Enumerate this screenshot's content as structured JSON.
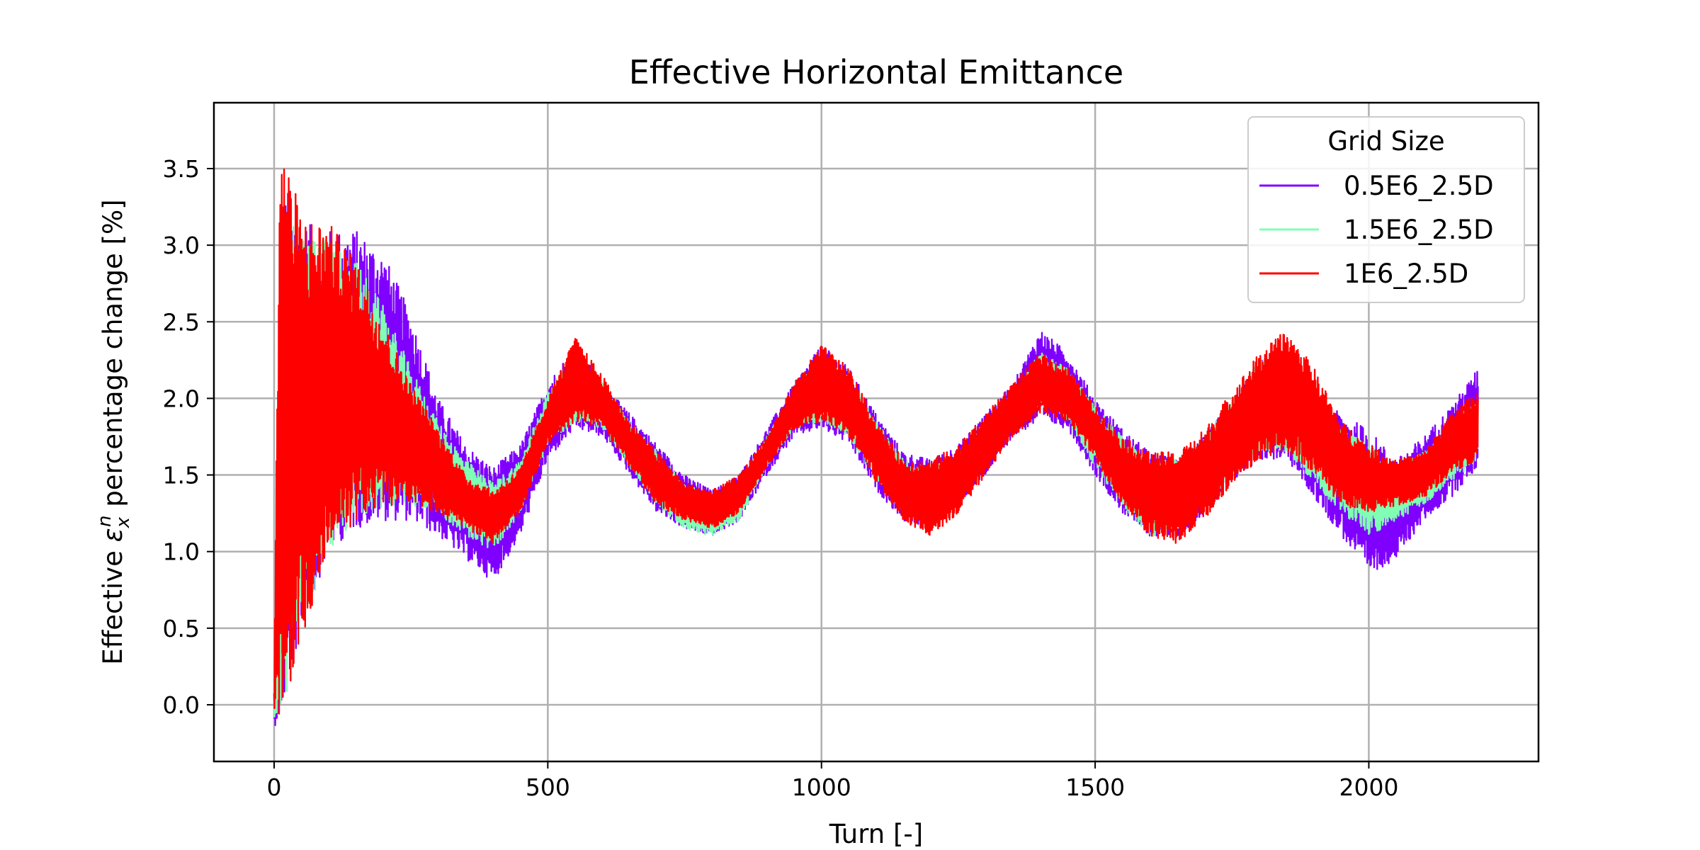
{
  "chart_data": {
    "type": "line",
    "title": "Effective Horizontal Emittance",
    "xlabel": "Turn [-]",
    "ylabel_prefix": "Effective ",
    "ylabel_symbol": "ε",
    "ylabel_sub": "x",
    "ylabel_sup": "n",
    "ylabel_suffix": " percentage change [%]",
    "xlim": [
      -110,
      2310
    ],
    "ylim": [
      -0.37,
      3.93
    ],
    "xticks": [
      0,
      500,
      1000,
      1500,
      2000
    ],
    "yticks": [
      0.0,
      0.5,
      1.0,
      1.5,
      2.0,
      2.5,
      3.0,
      3.5
    ],
    "xtick_labels": [
      "0",
      "500",
      "1000",
      "1500",
      "2000"
    ],
    "ytick_labels": [
      "0.0",
      "0.5",
      "1.0",
      "1.5",
      "2.0",
      "2.5",
      "3.0",
      "3.5"
    ],
    "grid": true,
    "legend": {
      "title": "Grid Size",
      "position": "top-right"
    },
    "series": [
      {
        "name": "0.5E6_2.5D",
        "color": "#8000ff",
        "x": [
          0,
          20,
          50,
          100,
          150,
          200,
          250,
          300,
          350,
          400,
          450,
          500,
          550,
          600,
          650,
          700,
          750,
          800,
          850,
          900,
          950,
          1000,
          1050,
          1100,
          1150,
          1200,
          1250,
          1300,
          1350,
          1400,
          1450,
          1500,
          1550,
          1600,
          1650,
          1700,
          1750,
          1800,
          1850,
          1900,
          1950,
          2000,
          2050,
          2100,
          2150,
          2200
        ],
        "upper": [
          0.1,
          3.4,
          3.15,
          3.1,
          3.1,
          2.95,
          2.55,
          2.0,
          1.7,
          1.55,
          1.7,
          2.1,
          2.35,
          2.1,
          1.9,
          1.7,
          1.5,
          1.4,
          1.5,
          1.8,
          2.1,
          2.35,
          2.2,
          1.9,
          1.65,
          1.6,
          1.7,
          1.9,
          2.1,
          2.45,
          2.3,
          2.0,
          1.8,
          1.65,
          1.6,
          1.75,
          2.0,
          2.25,
          2.3,
          2.0,
          1.9,
          1.8,
          1.6,
          1.75,
          1.95,
          2.2
        ],
        "lower": [
          -0.15,
          0.0,
          0.5,
          1.0,
          1.15,
          1.2,
          1.2,
          1.1,
          0.95,
          0.8,
          1.1,
          1.6,
          1.8,
          1.75,
          1.5,
          1.25,
          1.15,
          1.1,
          1.2,
          1.5,
          1.75,
          1.8,
          1.7,
          1.4,
          1.2,
          1.15,
          1.3,
          1.5,
          1.75,
          1.85,
          1.8,
          1.5,
          1.25,
          1.1,
          1.1,
          1.25,
          1.45,
          1.6,
          1.6,
          1.35,
          1.1,
          0.85,
          0.95,
          1.2,
          1.35,
          1.55
        ]
      },
      {
        "name": "1.5E6_2.5D",
        "color": "#80ffb4",
        "x": [
          0,
          20,
          50,
          100,
          150,
          200,
          250,
          300,
          350,
          400,
          450,
          500,
          550,
          600,
          650,
          700,
          750,
          800,
          850,
          900,
          950,
          1000,
          1050,
          1100,
          1150,
          1200,
          1250,
          1300,
          1350,
          1400,
          1450,
          1500,
          1550,
          1600,
          1650,
          1700,
          1750,
          1800,
          1850,
          1900,
          1950,
          2000,
          2050,
          2100,
          2150,
          2200
        ],
        "upper": [
          0.1,
          3.3,
          3.1,
          3.05,
          2.9,
          2.6,
          2.2,
          1.85,
          1.6,
          1.45,
          1.6,
          2.05,
          2.3,
          2.1,
          1.85,
          1.65,
          1.45,
          1.35,
          1.45,
          1.75,
          2.05,
          2.3,
          2.15,
          1.85,
          1.6,
          1.55,
          1.65,
          1.85,
          2.05,
          2.3,
          2.2,
          1.95,
          1.75,
          1.6,
          1.6,
          1.75,
          2.0,
          2.25,
          2.3,
          2.0,
          1.8,
          1.7,
          1.55,
          1.65,
          1.85,
          2.0
        ],
        "lower": [
          -0.15,
          0.0,
          0.5,
          1.0,
          1.2,
          1.3,
          1.3,
          1.25,
          1.1,
          1.0,
          1.25,
          1.7,
          1.85,
          1.8,
          1.55,
          1.3,
          1.15,
          1.1,
          1.2,
          1.55,
          1.8,
          1.85,
          1.75,
          1.45,
          1.25,
          1.2,
          1.35,
          1.55,
          1.8,
          1.95,
          1.85,
          1.55,
          1.3,
          1.1,
          1.1,
          1.3,
          1.5,
          1.65,
          1.65,
          1.45,
          1.25,
          1.1,
          1.2,
          1.3,
          1.45,
          1.6
        ]
      },
      {
        "name": "1E6_2.5D",
        "color": "#ff0000",
        "x": [
          0,
          10,
          50,
          100,
          150,
          200,
          250,
          300,
          350,
          400,
          450,
          500,
          550,
          600,
          650,
          700,
          750,
          800,
          850,
          900,
          950,
          1000,
          1050,
          1100,
          1150,
          1200,
          1250,
          1300,
          1350,
          1400,
          1450,
          1500,
          1550,
          1600,
          1650,
          1700,
          1750,
          1800,
          1850,
          1900,
          1950,
          2000,
          2050,
          2100,
          2150,
          2200
        ],
        "upper": [
          0.1,
          3.75,
          3.2,
          3.15,
          2.9,
          2.5,
          2.1,
          1.8,
          1.5,
          1.4,
          1.55,
          2.0,
          2.4,
          2.15,
          1.85,
          1.65,
          1.45,
          1.4,
          1.5,
          1.75,
          2.1,
          2.35,
          2.2,
          1.85,
          1.6,
          1.6,
          1.7,
          1.9,
          2.1,
          2.3,
          2.2,
          1.95,
          1.75,
          1.65,
          1.65,
          1.8,
          2.05,
          2.3,
          2.45,
          2.2,
          1.85,
          1.7,
          1.6,
          1.65,
          1.9,
          2.05
        ],
        "lower": [
          -0.1,
          -0.1,
          0.4,
          1.0,
          1.2,
          1.3,
          1.3,
          1.25,
          1.15,
          1.05,
          1.25,
          1.7,
          1.85,
          1.8,
          1.55,
          1.3,
          1.2,
          1.15,
          1.25,
          1.55,
          1.8,
          1.85,
          1.75,
          1.45,
          1.2,
          1.1,
          1.25,
          1.5,
          1.75,
          1.9,
          1.85,
          1.6,
          1.3,
          1.1,
          1.05,
          1.2,
          1.45,
          1.6,
          1.65,
          1.5,
          1.3,
          1.25,
          1.3,
          1.35,
          1.5,
          1.6
        ]
      }
    ]
  }
}
